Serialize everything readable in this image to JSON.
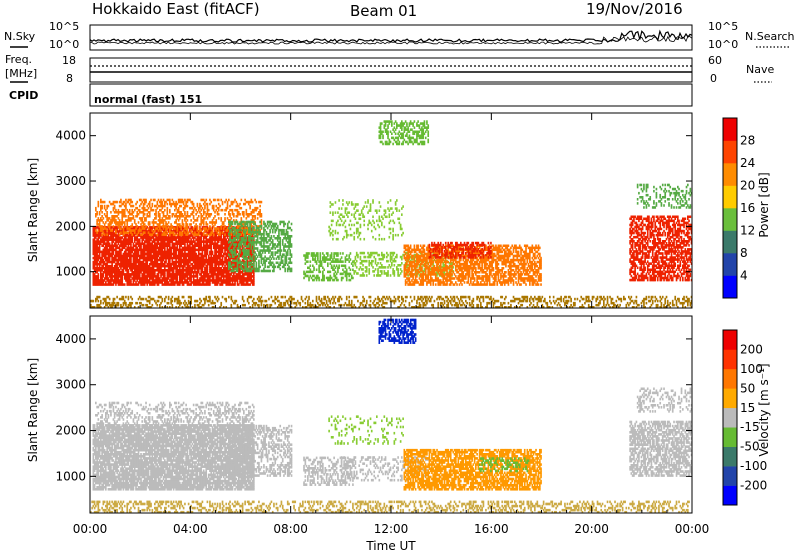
{
  "header": {
    "station": "Hokkaido East (fitACF)",
    "beam": "Beam 01",
    "date": "19/Nov/2016"
  },
  "top_panels": {
    "nsky_label": "N.Sky",
    "nsearch_label": "N.Search",
    "noise_ticks_left": [
      "10^5",
      "10^0"
    ],
    "noise_ticks_right": [
      "10^5",
      "10^0"
    ],
    "freq_label_line1": "Freq.",
    "freq_label_line2": "[MHz]",
    "freq_ticks": [
      "18",
      "8"
    ],
    "nave_label": "Nave",
    "nave_ticks": [
      "60",
      "0"
    ],
    "cpid_label": "CPID",
    "cpid_text": "normal (fast) 151"
  },
  "chart_data": [
    {
      "type": "heatmap",
      "name": "power",
      "ylabel": "Slant Range [km]",
      "xlabel": "",
      "ylim": [
        200,
        4500
      ],
      "y_ticks": [
        1000,
        2000,
        3000,
        4000
      ],
      "xlim_hours": [
        0,
        24
      ],
      "colorbar": {
        "label": "Power [dB]",
        "ticks": [
          "4",
          "8",
          "12",
          "16",
          "20",
          "24",
          "28"
        ],
        "colors": [
          "#0000ff",
          "#2244aa",
          "#3b7a6a",
          "#6abf3c",
          "#ffcc00",
          "#ff8c00",
          "#ff4400",
          "#ee0000"
        ]
      },
      "regions": [
        {
          "t0": 0.1,
          "t1": 6.5,
          "r0": 700,
          "r1": 2000,
          "color": "#ee2200",
          "density": 0.85
        },
        {
          "t0": 0.2,
          "t1": 6.8,
          "r0": 1800,
          "r1": 2600,
          "color": "#ff7700",
          "density": 0.4
        },
        {
          "t0": 5.5,
          "t1": 8.0,
          "r0": 1000,
          "r1": 2100,
          "color": "#55aa44",
          "density": 0.5
        },
        {
          "t0": 8.5,
          "t1": 10.5,
          "r0": 800,
          "r1": 1400,
          "color": "#66bb33",
          "density": 0.45
        },
        {
          "t0": 10.5,
          "t1": 14.5,
          "r0": 900,
          "r1": 1400,
          "color": "#88cc33",
          "density": 0.35
        },
        {
          "t0": 12.5,
          "t1": 18.0,
          "r0": 700,
          "r1": 1600,
          "color": "#ff7700",
          "density": 0.65
        },
        {
          "t0": 13.5,
          "t1": 16.0,
          "r0": 1300,
          "r1": 1650,
          "color": "#ee2200",
          "density": 0.5
        },
        {
          "t0": 11.5,
          "t1": 13.5,
          "r0": 3800,
          "r1": 4300,
          "color": "#66bb33",
          "density": 0.45
        },
        {
          "t0": 9.5,
          "t1": 12.5,
          "r0": 1700,
          "r1": 2600,
          "color": "#88cc33",
          "density": 0.18
        },
        {
          "t0": 21.5,
          "t1": 24.0,
          "r0": 800,
          "r1": 2200,
          "color": "#ee2200",
          "density": 0.6
        },
        {
          "t0": 21.8,
          "t1": 24.0,
          "r0": 2400,
          "r1": 2900,
          "color": "#55aa44",
          "density": 0.25
        },
        {
          "t0": 0.0,
          "t1": 24.0,
          "r0": 200,
          "r1": 450,
          "color": "#aa7700",
          "density": 0.35
        }
      ]
    },
    {
      "type": "heatmap",
      "name": "velocity",
      "ylabel": "Slant Range [km]",
      "xlabel": "Time UT",
      "ylim": [
        200,
        4500
      ],
      "y_ticks": [
        1000,
        2000,
        3000,
        4000
      ],
      "xlim_hours": [
        0,
        24
      ],
      "x_tick_labels": [
        "00:00",
        "04:00",
        "08:00",
        "12:00",
        "16:00",
        "20:00",
        "00:00"
      ],
      "colorbar": {
        "label": "Velocity [m s⁻¹]",
        "ticks": [
          "200",
          "100",
          "50",
          "15",
          "-15",
          "-50",
          "-100",
          "-200"
        ],
        "colors": [
          "#0000ff",
          "#2244aa",
          "#3b7a6a",
          "#66bb33",
          "#bbbbbb",
          "#ffaa00",
          "#ff7700",
          "#ff3300",
          "#ee0000"
        ]
      },
      "regions": [
        {
          "t0": 0.1,
          "t1": 6.5,
          "r0": 700,
          "r1": 2100,
          "color": "#bbbbbb",
          "density": 0.85
        },
        {
          "t0": 0.2,
          "t1": 6.5,
          "r0": 2000,
          "r1": 2600,
          "color": "#bbbbbb",
          "density": 0.35
        },
        {
          "t0": 5.5,
          "t1": 8.0,
          "r0": 1000,
          "r1": 2100,
          "color": "#bbbbbb",
          "density": 0.45
        },
        {
          "t0": 8.5,
          "t1": 10.5,
          "r0": 800,
          "r1": 1400,
          "color": "#bbbbbb",
          "density": 0.4
        },
        {
          "t0": 10.0,
          "t1": 13.5,
          "r0": 900,
          "r1": 1400,
          "color": "#bbbbbb",
          "density": 0.25
        },
        {
          "t0": 12.5,
          "t1": 18.0,
          "r0": 700,
          "r1": 1600,
          "color": "#ff9900",
          "density": 0.7
        },
        {
          "t0": 15.5,
          "t1": 17.5,
          "r0": 1100,
          "r1": 1400,
          "color": "#66bb33",
          "density": 0.25
        },
        {
          "t0": 11.5,
          "t1": 13.0,
          "r0": 3900,
          "r1": 4400,
          "color": "#0022cc",
          "density": 0.6
        },
        {
          "t0": 9.5,
          "t1": 12.5,
          "r0": 1700,
          "r1": 2300,
          "color": "#88cc33",
          "density": 0.15
        },
        {
          "t0": 21.5,
          "t1": 24.0,
          "r0": 1000,
          "r1": 2200,
          "color": "#bbbbbb",
          "density": 0.6
        },
        {
          "t0": 21.8,
          "t1": 24.0,
          "r0": 2400,
          "r1": 2900,
          "color": "#bbbbbb",
          "density": 0.25
        },
        {
          "t0": 0.0,
          "t1": 24.0,
          "r0": 200,
          "r1": 450,
          "color": "#ccaa44",
          "density": 0.35
        }
      ]
    }
  ]
}
